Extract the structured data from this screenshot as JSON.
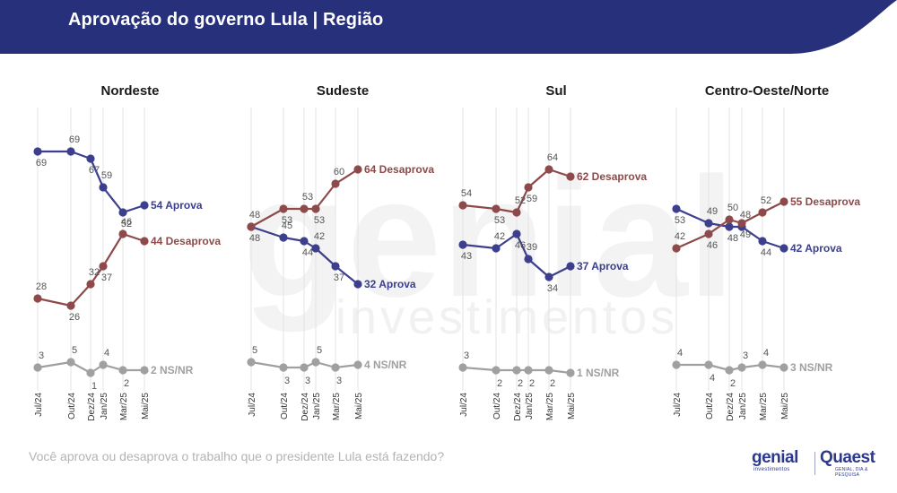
{
  "header": {
    "title": "Aprovação do governo Lula | Região"
  },
  "footnote": "Você aprova ou desaprova o trabalho que o presidente Lula está fazendo?",
  "logos": {
    "genial": "genial",
    "genial_sub": "investimentos",
    "quaest": "Quaest",
    "quaest_sub": "GENIAL, DIA & PESQUISA"
  },
  "watermark": {
    "line1": "genial",
    "line2": "investimentos"
  },
  "colors": {
    "header_bg": "#27307a",
    "aprova": "#3c3f8e",
    "desaprova": "#8e4a4a",
    "nsnr": "#a0a0a0",
    "grid": "#e3e3e3"
  },
  "chart_data": [
    {
      "type": "line",
      "title": "Nordeste",
      "x": [
        "Jul/24",
        "Out/24",
        "Dez/24",
        "Jan/25",
        "Mar/25",
        "Mai/25"
      ],
      "series": [
        {
          "name": "Aprova",
          "values": [
            69,
            69,
            67,
            59,
            52,
            54
          ],
          "end_label": "54 Aprova"
        },
        {
          "name": "Desaprova",
          "values": [
            28,
            26,
            32,
            37,
            46,
            44
          ],
          "end_label": "44 Desaprova"
        },
        {
          "name": "NS/NR",
          "values": [
            3,
            5,
            1,
            4,
            2,
            2
          ],
          "end_label": "2 NS/NR"
        }
      ]
    },
    {
      "type": "line",
      "title": "Sudeste",
      "x": [
        "Jul/24",
        "Out/24",
        "Dez/24",
        "Jan/25",
        "Mar/25",
        "Mai/25"
      ],
      "series": [
        {
          "name": "Aprova",
          "values": [
            48,
            45,
            44,
            42,
            37,
            32
          ],
          "end_label": "32 Aprova"
        },
        {
          "name": "Desaprova",
          "values": [
            48,
            53,
            53,
            53,
            60,
            64
          ],
          "end_label": "64 Desaprova"
        },
        {
          "name": "NS/NR",
          "values": [
            5,
            3,
            3,
            5,
            3,
            4
          ],
          "end_label": "4 NS/NR"
        }
      ]
    },
    {
      "type": "line",
      "title": "Sul",
      "x": [
        "Jul/24",
        "Out/24",
        "Dez/24",
        "Jan/25",
        "Mar/25",
        "Mai/25"
      ],
      "series": [
        {
          "name": "Aprova",
          "values": [
            43,
            42,
            46,
            39,
            34,
            37
          ],
          "end_label": "37 Aprova"
        },
        {
          "name": "Desaprova",
          "values": [
            54,
            53,
            52,
            59,
            64,
            62
          ],
          "end_label": "62 Desaprova"
        },
        {
          "name": "NS/NR",
          "values": [
            3,
            2,
            2,
            2,
            2,
            1
          ],
          "end_label": "1 NS/NR"
        }
      ]
    },
    {
      "type": "line",
      "title": "Centro-Oeste/Norte",
      "x": [
        "Jul/24",
        "Out/24",
        "Dez/24",
        "Jan/25",
        "Mar/25",
        "Mai/25"
      ],
      "series": [
        {
          "name": "Aprova",
          "values": [
            53,
            49,
            48,
            48,
            44,
            42
          ],
          "end_label": "42 Aprova"
        },
        {
          "name": "Desaprova",
          "values": [
            42,
            46,
            50,
            49,
            52,
            55
          ],
          "end_label": "55 Desaprova"
        },
        {
          "name": "NS/NR",
          "values": [
            4,
            4,
            2,
            3,
            4,
            3
          ],
          "end_label": "3 NS/NR"
        }
      ]
    }
  ]
}
